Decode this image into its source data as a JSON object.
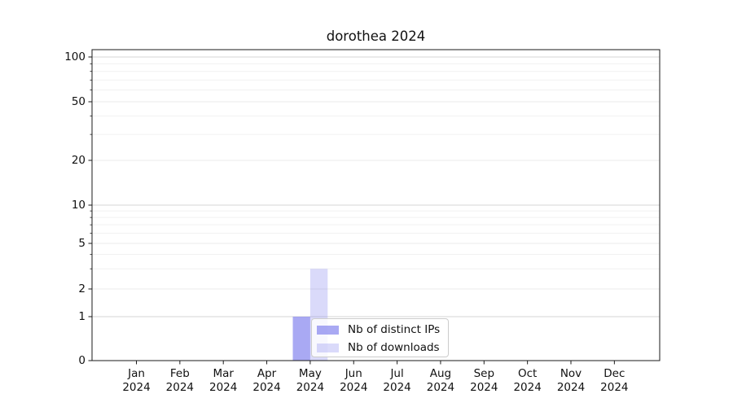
{
  "chart_data": {
    "type": "bar",
    "title": "dorothea 2024",
    "xlabel": "",
    "ylabel": "",
    "categories": [
      "Jan",
      "Feb",
      "Mar",
      "Apr",
      "May",
      "Jun",
      "Jul",
      "Aug",
      "Sep",
      "Oct",
      "Nov",
      "Dec"
    ],
    "x_tick_year": "2024",
    "series": [
      {
        "name": "Nb of distinct IPs",
        "color": "#7b7bed",
        "opacity": 0.65,
        "values": [
          0,
          0,
          0,
          0,
          1,
          0,
          0,
          0,
          0,
          0,
          0,
          0
        ]
      },
      {
        "name": "Nb of downloads",
        "color": "#7b7bed",
        "opacity": 0.28,
        "values": [
          0,
          0,
          0,
          0,
          3,
          0,
          0,
          0,
          0,
          0,
          0,
          0
        ]
      }
    ],
    "yscale": "symlog",
    "ylim": [
      0,
      112
    ],
    "yticks_labeled": [
      0,
      1,
      2,
      5,
      10,
      20,
      50,
      100
    ],
    "yticks_minor": [
      3,
      4,
      6,
      7,
      8,
      9,
      30,
      40,
      60,
      70,
      80,
      90
    ],
    "grid": true,
    "legend_position": "inside lower-center"
  }
}
